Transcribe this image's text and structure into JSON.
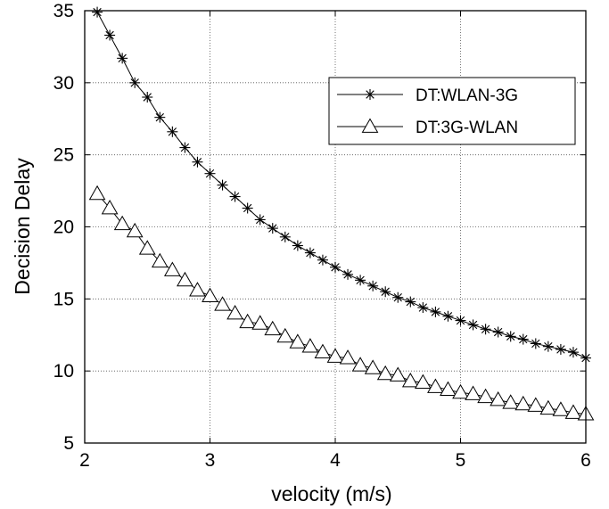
{
  "chart_data": {
    "type": "line",
    "title": "",
    "xlabel": "velocity (m/s)",
    "ylabel": "Decision Delay",
    "xlim": [
      2,
      6
    ],
    "ylim": [
      5,
      35
    ],
    "xticks": [
      2,
      3,
      4,
      5,
      6
    ],
    "yticks": [
      5,
      10,
      15,
      20,
      25,
      30,
      35
    ],
    "xtick_labels": [
      "2",
      "3",
      "4",
      "5",
      "6"
    ],
    "ytick_labels": [
      "5",
      "10",
      "15",
      "20",
      "25",
      "30",
      "35"
    ],
    "grid": true,
    "legend_position": "top-right",
    "x": [
      2.1,
      2.2,
      2.3,
      2.4,
      2.5,
      2.6,
      2.7,
      2.8,
      2.9,
      3.0,
      3.1,
      3.2,
      3.3,
      3.4,
      3.5,
      3.6,
      3.7,
      3.8,
      3.9,
      4.0,
      4.1,
      4.2,
      4.3,
      4.4,
      4.5,
      4.6,
      4.7,
      4.8,
      4.9,
      5.0,
      5.1,
      5.2,
      5.3,
      5.4,
      5.5,
      5.6,
      5.7,
      5.8,
      5.9,
      6.0
    ],
    "series": [
      {
        "name": "DT:WLAN-3G",
        "marker": "asterisk",
        "color": "#000000",
        "values": [
          34.9,
          33.3,
          31.7,
          30.0,
          29.0,
          27.6,
          26.6,
          25.5,
          24.5,
          23.7,
          22.9,
          22.1,
          21.3,
          20.5,
          19.9,
          19.3,
          18.7,
          18.2,
          17.7,
          17.2,
          16.7,
          16.3,
          15.9,
          15.5,
          15.1,
          14.8,
          14.4,
          14.1,
          13.8,
          13.5,
          13.2,
          12.9,
          12.7,
          12.4,
          12.2,
          11.9,
          11.7,
          11.5,
          11.3,
          10.9
        ]
      },
      {
        "name": "DT:3G-WLAN",
        "marker": "triangle",
        "color": "#000000",
        "values": [
          22.3,
          21.3,
          20.2,
          19.7,
          18.5,
          17.6,
          17.0,
          16.3,
          15.6,
          15.2,
          14.6,
          14.0,
          13.4,
          13.3,
          12.9,
          12.4,
          12.0,
          11.7,
          11.3,
          11.0,
          10.9,
          10.4,
          10.2,
          9.8,
          9.7,
          9.3,
          9.2,
          8.9,
          8.7,
          8.5,
          8.4,
          8.2,
          8.0,
          7.8,
          7.7,
          7.6,
          7.4,
          7.3,
          7.1,
          7.0
        ]
      }
    ]
  }
}
